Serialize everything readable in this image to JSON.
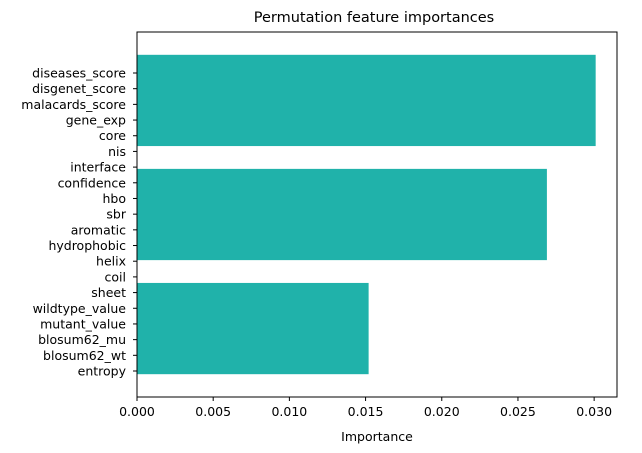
{
  "chart_data": {
    "type": "bar",
    "orientation": "horizontal",
    "title": "Permutation feature importances",
    "xlabel": "Importance",
    "ylabel": "",
    "xlim": [
      0,
      0.0315
    ],
    "xticks": [
      "0.000",
      "0.005",
      "0.010",
      "0.015",
      "0.020",
      "0.025",
      "0.030"
    ],
    "bar_color": "#20b2aa",
    "grid": false,
    "legend": "none",
    "features": [
      "diseases_score",
      "disgenet_score",
      "malacards_score",
      "gene_exp",
      "core",
      "nis",
      "interface",
      "confidence",
      "hbo",
      "sbr",
      "aromatic",
      "hydrophobic",
      "helix",
      "coil",
      "sheet",
      "wildtype_value",
      "mutant_value",
      "blosum62_mu",
      "blosum62_wt",
      "entropy"
    ],
    "bars": [
      {
        "value": 0.0301
      },
      {
        "value": 0.0269
      },
      {
        "value": 0.0152
      }
    ]
  }
}
